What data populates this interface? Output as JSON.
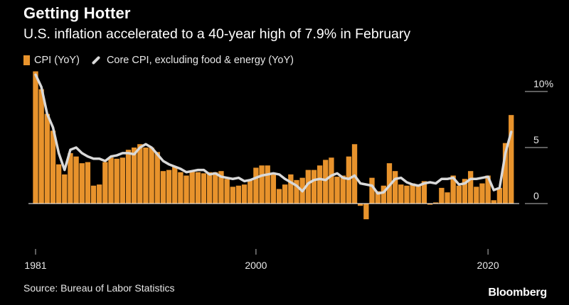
{
  "header": {
    "title": "Getting Hotter",
    "subtitle": "U.S. inflation accelerated to a 40-year high of 7.9% in February"
  },
  "legend": {
    "cpi_label": "CPI (YoY)",
    "core_label": "Core CPI, excluding food & energy (YoY)"
  },
  "footer": {
    "source": "Source: Bureau of Labor Statistics",
    "brand": "Bloomberg"
  },
  "colors": {
    "cpi": "#e8932c",
    "core": "#d9d9d9",
    "axis": "#ffffff",
    "background": "#000000"
  },
  "chart_data": {
    "type": "bar",
    "title": "Getting Hotter",
    "subtitle": "U.S. inflation accelerated to a 40-year high of 7.9% in February",
    "xlabel": "",
    "ylabel": "",
    "ylim": [
      -2,
      11
    ],
    "y_ticks": [
      0,
      5,
      10
    ],
    "y_tick_labels": [
      "0",
      "5",
      "10%"
    ],
    "x_ticks": [
      1981,
      2000,
      2020
    ],
    "x_tick_labels": [
      "1981",
      "2000",
      "2020"
    ],
    "x_range": [
      1981,
      2022.2
    ],
    "grid": false,
    "legend_position": "top-left",
    "x": [
      1981.0,
      1981.5,
      1982.0,
      1982.5,
      1983.0,
      1983.5,
      1984.0,
      1984.5,
      1985.0,
      1985.5,
      1986.0,
      1986.5,
      1987.0,
      1987.5,
      1988.0,
      1988.5,
      1989.0,
      1989.5,
      1990.0,
      1990.5,
      1991.0,
      1991.5,
      1992.0,
      1992.5,
      1993.0,
      1993.5,
      1994.0,
      1994.5,
      1995.0,
      1995.5,
      1996.0,
      1996.5,
      1997.0,
      1997.5,
      1998.0,
      1998.5,
      1999.0,
      1999.5,
      2000.0,
      2000.5,
      2001.0,
      2001.5,
      2002.0,
      2002.5,
      2003.0,
      2003.5,
      2004.0,
      2004.5,
      2005.0,
      2005.5,
      2006.0,
      2006.5,
      2007.0,
      2007.5,
      2008.0,
      2008.5,
      2009.0,
      2009.5,
      2010.0,
      2010.5,
      2011.0,
      2011.5,
      2012.0,
      2012.5,
      2013.0,
      2013.5,
      2014.0,
      2014.5,
      2015.0,
      2015.5,
      2016.0,
      2016.5,
      2017.0,
      2017.5,
      2018.0,
      2018.5,
      2019.0,
      2019.5,
      2020.0,
      2020.5,
      2021.0,
      2021.5,
      2022.0
    ],
    "series": [
      {
        "name": "CPI (YoY)",
        "kind": "bar",
        "values": [
          11.8,
          10.2,
          8.0,
          6.5,
          3.5,
          2.6,
          4.5,
          4.2,
          3.6,
          3.7,
          1.6,
          1.7,
          3.7,
          4.1,
          4.0,
          4.1,
          4.8,
          5.0,
          5.3,
          5.0,
          5.0,
          4.6,
          2.9,
          3.0,
          3.3,
          2.8,
          2.5,
          2.9,
          2.8,
          2.7,
          2.8,
          2.8,
          2.9,
          2.2,
          1.5,
          1.6,
          1.7,
          2.1,
          3.2,
          3.4,
          3.4,
          2.6,
          1.3,
          1.7,
          2.6,
          2.1,
          2.3,
          3.0,
          3.0,
          3.4,
          3.9,
          4.1,
          2.4,
          2.5,
          4.2,
          5.3,
          -0.2,
          -1.4,
          2.3,
          1.1,
          1.6,
          3.6,
          2.9,
          1.7,
          1.6,
          1.8,
          1.6,
          2.0,
          -0.1,
          0.1,
          1.4,
          1.0,
          2.5,
          1.6,
          2.2,
          2.9,
          1.5,
          1.8,
          2.5,
          0.3,
          1.4,
          5.4,
          7.9
        ]
      },
      {
        "name": "Core CPI, excluding food & energy (YoY)",
        "kind": "line",
        "values": [
          11.5,
          10.4,
          8.0,
          6.8,
          4.5,
          3.0,
          4.8,
          5.0,
          4.5,
          4.2,
          4.0,
          4.0,
          3.8,
          4.2,
          4.3,
          4.5,
          4.5,
          4.4,
          5.0,
          5.3,
          5.0,
          4.4,
          3.8,
          3.5,
          3.3,
          3.1,
          2.8,
          2.9,
          3.0,
          3.0,
          2.6,
          2.7,
          2.4,
          2.3,
          2.2,
          2.3,
          2.0,
          2.1,
          2.3,
          2.5,
          2.6,
          2.7,
          2.6,
          2.2,
          1.9,
          1.6,
          1.1,
          1.8,
          2.1,
          2.2,
          2.1,
          2.5,
          2.7,
          2.3,
          2.2,
          2.5,
          1.8,
          1.7,
          1.6,
          0.9,
          1.0,
          1.6,
          2.2,
          2.3,
          1.9,
          1.7,
          1.6,
          1.8,
          1.9,
          1.8,
          2.2,
          2.2,
          2.3,
          1.7,
          1.8,
          2.2,
          2.2,
          2.3,
          2.4,
          1.2,
          1.4,
          4.5,
          6.4
        ]
      }
    ]
  }
}
